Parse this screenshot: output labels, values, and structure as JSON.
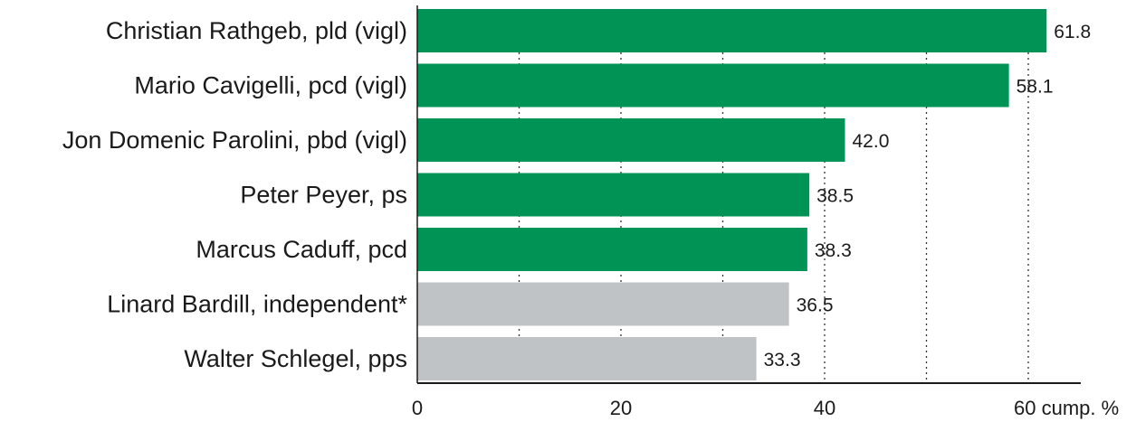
{
  "chart_data": {
    "type": "bar",
    "orientation": "horizontal",
    "categories": [
      "Christian Rathgeb, pld (vigl)",
      "Mario Cavigelli, pcd (vigl)",
      "Jon Domenic Parolini, pbd (vigl)",
      "Peter Peyer, ps",
      "Marcus Caduff, pcd",
      "Linard Bardill, independent*",
      "Walter Schlegel, pps"
    ],
    "values": [
      61.8,
      58.1,
      42.0,
      38.5,
      38.3,
      36.5,
      33.3
    ],
    "value_labels": [
      "61.8",
      "58.1",
      "42.0",
      "38.5",
      "38.3",
      "36.5",
      "33.3"
    ],
    "elected": [
      true,
      true,
      true,
      true,
      true,
      false,
      false
    ],
    "colors": {
      "elected": "#009356",
      "not_elected": "#c0c3c5"
    },
    "x_ticks": [
      0,
      20,
      40,
      60
    ],
    "x_tick_labels": [
      "0",
      "20",
      "40",
      "60 cump. %"
    ],
    "xlim": [
      0,
      65
    ],
    "grid_lines": [
      10,
      20,
      30,
      40,
      50,
      60
    ],
    "grid": true,
    "title": "",
    "xlabel": "",
    "ylabel": ""
  }
}
